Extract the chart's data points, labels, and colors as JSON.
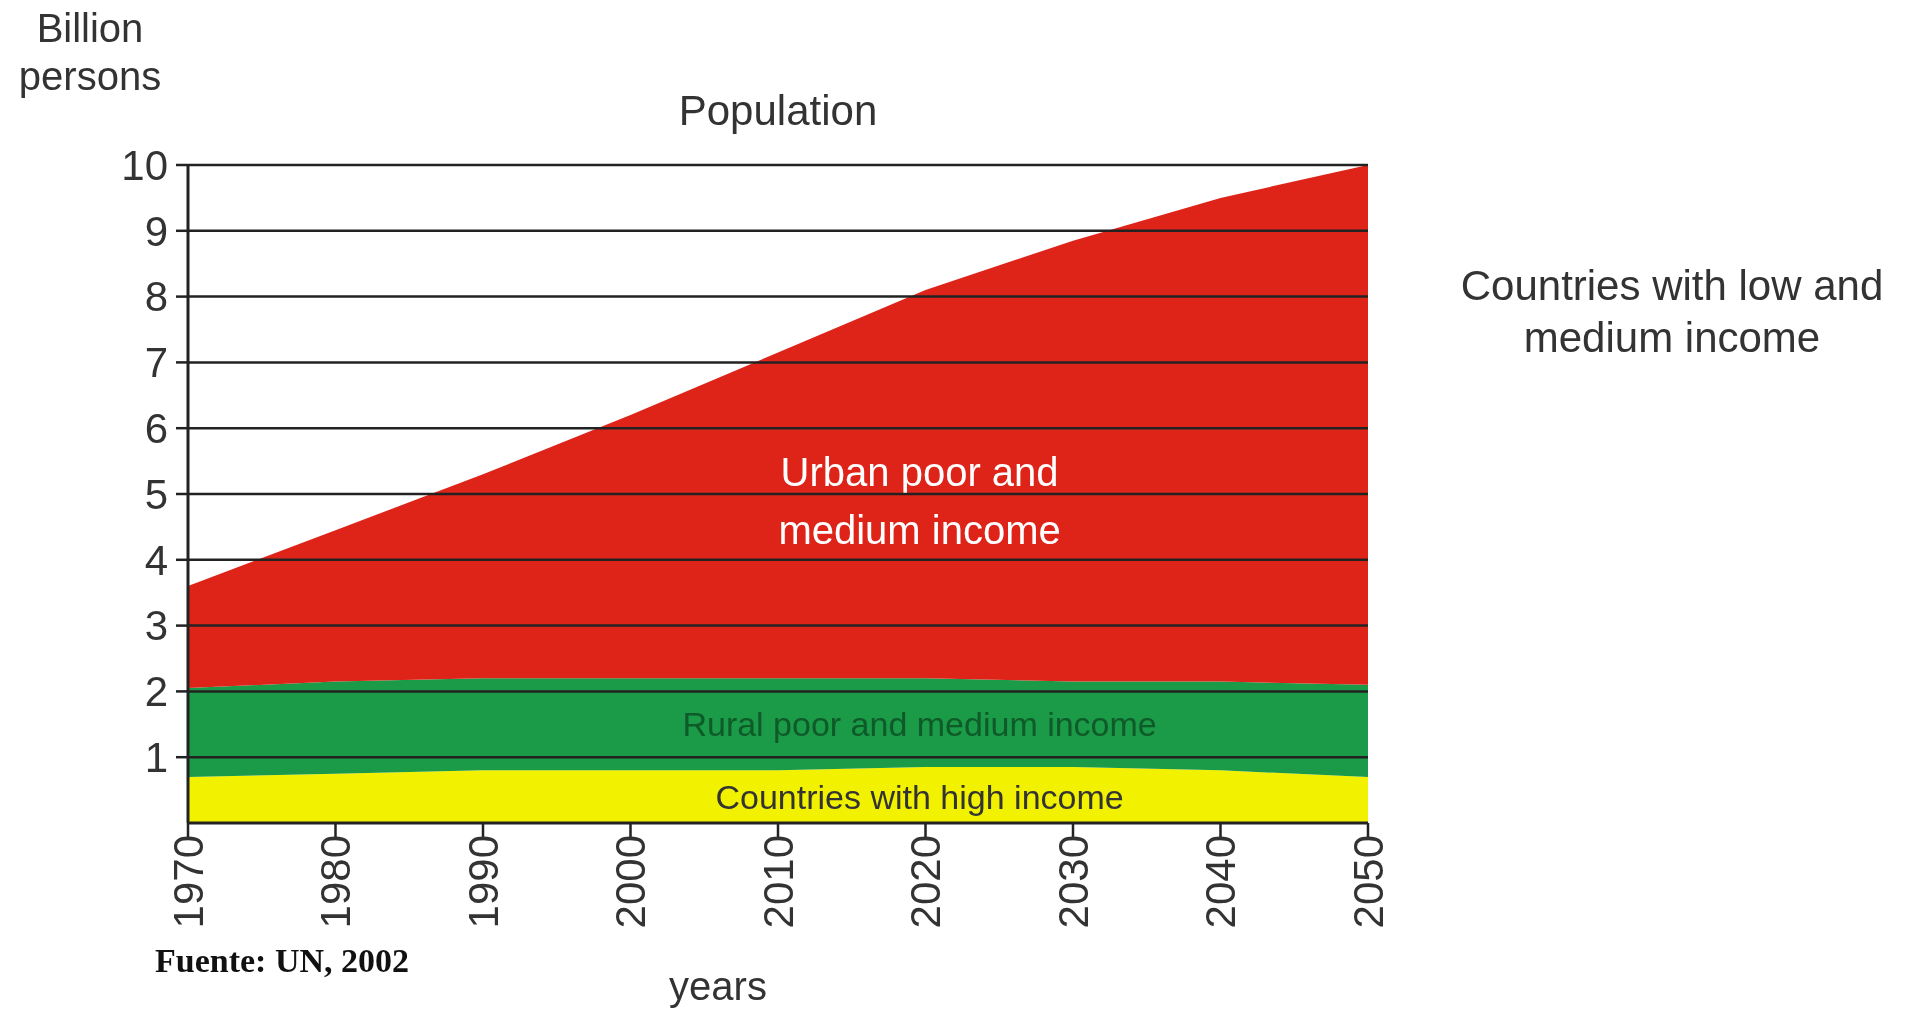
{
  "chart_data": {
    "type": "area",
    "stacked": true,
    "title": "Population",
    "ylabel": "Billion persons",
    "xlabel": "years",
    "x": [
      1970,
      1980,
      1990,
      2000,
      2010,
      2020,
      2030,
      2040,
      2050
    ],
    "series": [
      {
        "name": "Countries with high income",
        "color": "#f2f200",
        "values": [
          0.7,
          0.75,
          0.8,
          0.8,
          0.8,
          0.85,
          0.85,
          0.8,
          0.7
        ]
      },
      {
        "name": "Rural poor and medium income",
        "color": "#1b9a48",
        "values": [
          1.35,
          1.4,
          1.4,
          1.4,
          1.4,
          1.35,
          1.3,
          1.35,
          1.4
        ]
      },
      {
        "name": "Urban poor and medium income",
        "color": "#de2419",
        "values": [
          1.55,
          2.3,
          3.1,
          4.0,
          4.95,
          5.9,
          6.7,
          7.35,
          7.9
        ]
      }
    ],
    "xlim": [
      1970,
      2050
    ],
    "xticks": [
      1970,
      1980,
      1990,
      2000,
      2010,
      2020,
      2030,
      2040,
      2050
    ],
    "ylim": [
      0,
      10
    ],
    "yticks": [
      1,
      2,
      3,
      4,
      5,
      6,
      7,
      8,
      9,
      10
    ],
    "grid": "y",
    "annotations": [
      "Countries with low and medium income",
      "Fuente: UN, 2002"
    ]
  }
}
